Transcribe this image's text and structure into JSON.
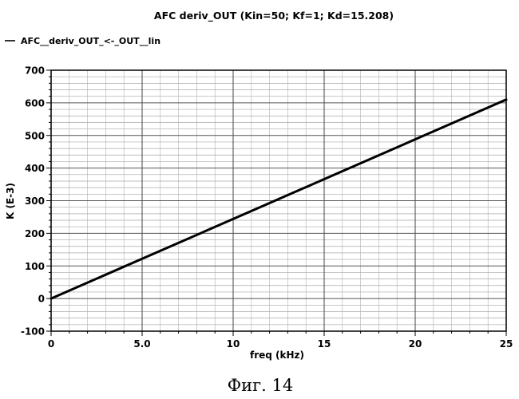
{
  "chart_data": {
    "type": "line",
    "title": "AFC deriv_OUT (Kin=50; Kf=1; Kd=15.208)",
    "xlabel": "freq (kHz)",
    "ylabel": "K (E-3)",
    "xlim": [
      0,
      25
    ],
    "ylim": [
      -100,
      700
    ],
    "x_ticks": [
      0,
      5,
      10,
      15,
      20,
      25
    ],
    "x_tick_labels": [
      "0",
      "5.0",
      "10",
      "15",
      "20",
      "25"
    ],
    "y_ticks": [
      -100,
      0,
      100,
      200,
      300,
      400,
      500,
      600,
      700
    ],
    "y_tick_labels": [
      "-100",
      "0",
      "100",
      "200",
      "300",
      "400",
      "500",
      "600",
      "700"
    ],
    "x_minor_step": 1,
    "y_minor_step": 20,
    "grid": true,
    "legend": {
      "position": "top-left",
      "entries": [
        "AFC__deriv_OUT_<-_OUT__lin"
      ]
    },
    "series": [
      {
        "name": "AFC__deriv_OUT_<-_OUT__lin",
        "color": "#000000",
        "x": [
          0,
          5,
          10,
          15,
          20,
          25
        ],
        "y": [
          0,
          122,
          244,
          366,
          488,
          610
        ]
      }
    ]
  },
  "caption": "Фиг. 14"
}
